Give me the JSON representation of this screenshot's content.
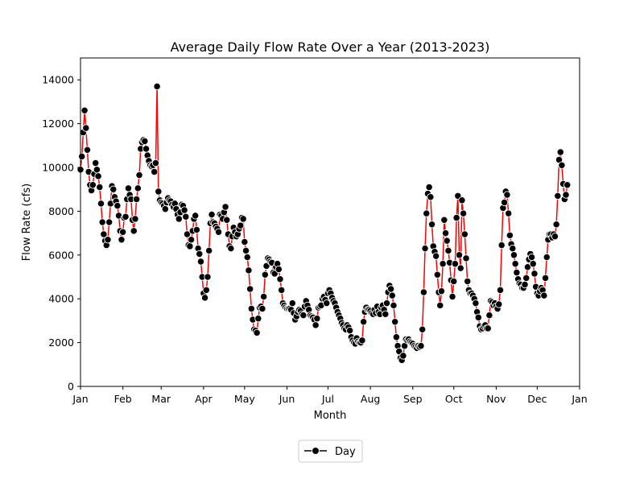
{
  "chart_data": {
    "type": "line",
    "title": "Average Daily Flow Rate Over a Year (2013-2023)",
    "xlabel": "Month",
    "ylabel": "Flow Rate (cfs)",
    "xlim": [
      0,
      365
    ],
    "ylim": [
      0,
      15000
    ],
    "x_ticks": [
      {
        "label": "Jan",
        "day": 0
      },
      {
        "label": "Feb",
        "day": 31
      },
      {
        "label": "Mar",
        "day": 59
      },
      {
        "label": "Apr",
        "day": 90
      },
      {
        "label": "May",
        "day": 120
      },
      {
        "label": "Jun",
        "day": 151
      },
      {
        "label": "Jul",
        "day": 181
      },
      {
        "label": "Aug",
        "day": 212
      },
      {
        "label": "Sep",
        "day": 243
      },
      {
        "label": "Oct",
        "day": 273
      },
      {
        "label": "Nov",
        "day": 304
      },
      {
        "label": "Dec",
        "day": 334
      },
      {
        "label": "Jan",
        "day": 365
      }
    ],
    "y_ticks": [
      0,
      2000,
      4000,
      6000,
      8000,
      10000,
      12000,
      14000
    ],
    "y_tick_labels": [
      "0",
      "2000",
      "4000",
      "6000",
      "8000",
      "10000",
      "12000",
      "14000"
    ],
    "grid": false,
    "legend_position": "below",
    "series": [
      {
        "name": "Day",
        "line_color": "#ff0000",
        "marker_color": "#000000",
        "marker_edge_color": "#ffffff",
        "day_step": 1,
        "values": [
          9900,
          10500,
          11600,
          12600,
          11800,
          10800,
          9800,
          9200,
          8950,
          9200,
          9700,
          10200,
          9900,
          9600,
          9100,
          8350,
          7500,
          6950,
          6650,
          6450,
          6700,
          7500,
          8350,
          9150,
          9000,
          8650,
          8450,
          8250,
          7800,
          7100,
          6700,
          7050,
          7700,
          7750,
          8550,
          9050,
          8750,
          8550,
          7600,
          7100,
          7650,
          8550,
          9050,
          9650,
          10850,
          11150,
          11250,
          11200,
          10850,
          10550,
          10300,
          10100,
          10050,
          10100,
          9800,
          10200,
          13700,
          8900,
          8500,
          8400,
          8350,
          8250,
          8100,
          8400,
          8600,
          8500,
          8450,
          8300,
          8200,
          8350,
          8100,
          7850,
          7650,
          7950,
          8300,
          8250,
          8050,
          7750,
          6950,
          6450,
          6400,
          6700,
          7100,
          7650,
          7800,
          7150,
          6300,
          6050,
          5700,
          5000,
          4250,
          4050,
          4400,
          5000,
          6200,
          7450,
          7850,
          7500,
          7450,
          7300,
          7200,
          7050,
          7850,
          7800,
          7650,
          7950,
          8200,
          7600,
          6950,
          6400,
          6300,
          6850,
          7250,
          7050,
          6850,
          6950,
          7200,
          7350,
          7700,
          7650,
          6600,
          6200,
          5900,
          5300,
          4450,
          3550,
          3050,
          2600,
          2550,
          2450,
          3100,
          3600,
          3650,
          3550,
          4100,
          5100,
          5500,
          5850,
          5800,
          5700,
          5650,
          5200,
          5150,
          5450,
          5600,
          5350,
          4900,
          4400,
          3800,
          3700,
          3600,
          3550,
          3550,
          3550,
          3500,
          3800,
          3350,
          3050,
          3200,
          3400,
          3500,
          3450,
          3300,
          3250,
          3650,
          3900,
          3700,
          3500,
          3250,
          3200,
          3150,
          3050,
          2800,
          3100,
          3600,
          3650,
          3700,
          4000,
          4100,
          3950,
          3800,
          4250,
          4400,
          4250,
          4050,
          3900,
          3800,
          3600,
          3400,
          3250,
          3100,
          2900,
          2800,
          2650,
          2600,
          2800,
          2700,
          2550,
          2250,
          2100,
          2000,
          1950,
          2200,
          2050,
          2000,
          2000,
          2100,
          2950,
          3400,
          3600,
          3500,
          3500,
          3450,
          3350,
          3300,
          3500,
          3350,
          3650,
          3400,
          3300,
          3600,
          3700,
          3500,
          3300,
          3800,
          4300,
          4600,
          4450,
          4150,
          3700,
          2950,
          2250,
          1850,
          1600,
          1300,
          1200,
          1400,
          1850,
          2150,
          2100,
          2150,
          2050,
          2000,
          1950,
          1850,
          1800,
          1750,
          1850,
          1800,
          1850,
          2600,
          4300,
          6300,
          7900,
          8800,
          9100,
          8650,
          7400,
          6400,
          6150,
          5950,
          5100,
          4300,
          3700,
          4350,
          5600,
          7600,
          7000,
          6650,
          6200,
          5650,
          4850,
          4100,
          4800,
          5600,
          7700,
          8700,
          6000,
          5400,
          8500,
          7900,
          6950,
          5850,
          4800,
          4400,
          4250,
          4250,
          4150,
          4000,
          3800,
          3400,
          3150,
          2750,
          2600,
          2650,
          2750,
          2800,
          2650,
          2650,
          3250,
          3900,
          3850,
          3700,
          3800,
          3650,
          3550,
          3750,
          4400,
          6450,
          8150,
          8400,
          8900,
          8750,
          7900,
          6900,
          6500,
          6300,
          6000,
          5600,
          5200,
          4900,
          4700,
          4650,
          4500,
          4500,
          4650,
          4950,
          5450,
          5800,
          6050,
          5900,
          5600,
          5150,
          4550,
          4250,
          4150,
          4350,
          4500,
          4400,
          4150,
          4950,
          5900,
          6700,
          6950,
          6950,
          6800,
          6950,
          6850,
          7400,
          8700,
          10350,
          10700,
          10100,
          9250,
          8550,
          8750,
          9200
        ]
      }
    ]
  }
}
